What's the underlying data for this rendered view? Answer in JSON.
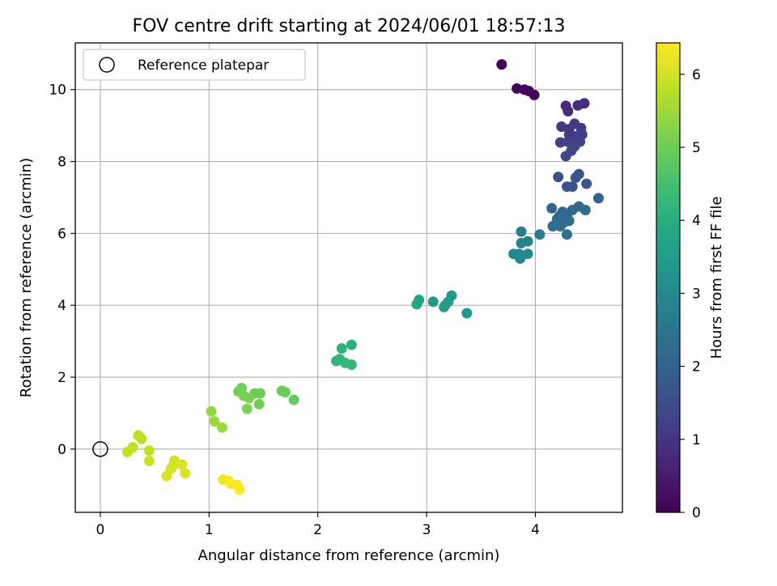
{
  "chart_data": {
    "type": "scatter",
    "title": "FOV centre drift starting at 2024/06/01 18:57:13",
    "xlabel": "Angular distance from reference (arcmin)",
    "ylabel": "Rotation from reference (arcmin)",
    "xlim": [
      -0.23,
      4.8
    ],
    "ylim": [
      -1.76,
      11.3
    ],
    "x_ticks": [
      0,
      1,
      2,
      3,
      4
    ],
    "y_ticks": [
      0,
      2,
      4,
      6,
      8,
      10
    ],
    "grid": true,
    "legend": {
      "placement": "upper-left",
      "entries": [
        "Reference platepar"
      ]
    },
    "reference_point": {
      "x": 0,
      "y": 0
    },
    "colorbar": {
      "label": "Hours from first FF file",
      "colormap": "viridis",
      "range": [
        0,
        6.43
      ],
      "ticks": [
        0,
        1,
        2,
        3,
        4,
        5,
        6
      ]
    },
    "points": [
      {
        "x": 3.69,
        "y": 10.7,
        "h": 0.0
      },
      {
        "x": 3.83,
        "y": 10.03,
        "h": 0.05
      },
      {
        "x": 3.9,
        "y": 10.0,
        "h": 0.1
      },
      {
        "x": 3.94,
        "y": 9.96,
        "h": 0.12
      },
      {
        "x": 3.99,
        "y": 9.85,
        "h": 0.15
      },
      {
        "x": 4.28,
        "y": 9.55,
        "h": 0.75
      },
      {
        "x": 4.3,
        "y": 9.4,
        "h": 0.8
      },
      {
        "x": 4.39,
        "y": 9.56,
        "h": 0.8
      },
      {
        "x": 4.45,
        "y": 9.62,
        "h": 0.85
      },
      {
        "x": 4.24,
        "y": 8.97,
        "h": 1.0
      },
      {
        "x": 4.31,
        "y": 8.9,
        "h": 1.0
      },
      {
        "x": 4.36,
        "y": 9.05,
        "h": 1.05
      },
      {
        "x": 4.42,
        "y": 8.93,
        "h": 1.1
      },
      {
        "x": 4.31,
        "y": 8.75,
        "h": 1.15
      },
      {
        "x": 4.37,
        "y": 8.7,
        "h": 1.15
      },
      {
        "x": 4.43,
        "y": 8.75,
        "h": 1.2
      },
      {
        "x": 4.23,
        "y": 8.53,
        "h": 1.2
      },
      {
        "x": 4.3,
        "y": 8.55,
        "h": 1.25
      },
      {
        "x": 4.36,
        "y": 8.42,
        "h": 1.25
      },
      {
        "x": 4.41,
        "y": 8.55,
        "h": 1.3
      },
      {
        "x": 4.33,
        "y": 8.3,
        "h": 1.3
      },
      {
        "x": 4.28,
        "y": 8.15,
        "h": 1.35
      },
      {
        "x": 4.21,
        "y": 7.57,
        "h": 1.6
      },
      {
        "x": 4.29,
        "y": 7.3,
        "h": 1.65
      },
      {
        "x": 4.34,
        "y": 7.3,
        "h": 1.65
      },
      {
        "x": 4.37,
        "y": 7.55,
        "h": 1.7
      },
      {
        "x": 4.4,
        "y": 7.65,
        "h": 1.7
      },
      {
        "x": 4.47,
        "y": 7.38,
        "h": 1.75
      },
      {
        "x": 4.58,
        "y": 6.98,
        "h": 2.0
      },
      {
        "x": 4.15,
        "y": 6.7,
        "h": 2.1
      },
      {
        "x": 4.22,
        "y": 6.48,
        "h": 2.1
      },
      {
        "x": 4.25,
        "y": 6.6,
        "h": 2.15
      },
      {
        "x": 4.29,
        "y": 6.5,
        "h": 2.15
      },
      {
        "x": 4.34,
        "y": 6.65,
        "h": 2.2
      },
      {
        "x": 4.4,
        "y": 6.75,
        "h": 2.2
      },
      {
        "x": 4.46,
        "y": 6.65,
        "h": 2.2
      },
      {
        "x": 4.2,
        "y": 6.4,
        "h": 2.25
      },
      {
        "x": 4.26,
        "y": 6.3,
        "h": 2.25
      },
      {
        "x": 4.31,
        "y": 6.35,
        "h": 2.3
      },
      {
        "x": 4.16,
        "y": 6.2,
        "h": 2.3
      },
      {
        "x": 4.23,
        "y": 6.2,
        "h": 2.35
      },
      {
        "x": 4.29,
        "y": 5.97,
        "h": 2.4
      },
      {
        "x": 4.04,
        "y": 5.97,
        "h": 2.65
      },
      {
        "x": 3.87,
        "y": 6.05,
        "h": 2.75
      },
      {
        "x": 3.93,
        "y": 5.78,
        "h": 2.8
      },
      {
        "x": 3.87,
        "y": 5.73,
        "h": 2.85
      },
      {
        "x": 3.8,
        "y": 5.43,
        "h": 3.0
      },
      {
        "x": 3.85,
        "y": 5.43,
        "h": 3.0
      },
      {
        "x": 3.93,
        "y": 5.43,
        "h": 3.05
      },
      {
        "x": 3.86,
        "y": 5.3,
        "h": 3.05
      },
      {
        "x": 3.37,
        "y": 3.78,
        "h": 3.4
      },
      {
        "x": 3.23,
        "y": 4.27,
        "h": 3.45
      },
      {
        "x": 3.06,
        "y": 4.1,
        "h": 3.5
      },
      {
        "x": 3.2,
        "y": 4.1,
        "h": 3.55
      },
      {
        "x": 3.17,
        "y": 4.0,
        "h": 3.55
      },
      {
        "x": 3.16,
        "y": 3.95,
        "h": 3.6
      },
      {
        "x": 2.93,
        "y": 4.15,
        "h": 3.7
      },
      {
        "x": 2.91,
        "y": 4.03,
        "h": 3.75
      },
      {
        "x": 2.31,
        "y": 2.9,
        "h": 4.05
      },
      {
        "x": 2.22,
        "y": 2.8,
        "h": 4.1
      },
      {
        "x": 2.17,
        "y": 2.45,
        "h": 4.2
      },
      {
        "x": 2.2,
        "y": 2.5,
        "h": 4.2
      },
      {
        "x": 2.25,
        "y": 2.4,
        "h": 4.25
      },
      {
        "x": 2.31,
        "y": 2.35,
        "h": 4.25
      },
      {
        "x": 1.78,
        "y": 1.37,
        "h": 4.9
      },
      {
        "x": 1.7,
        "y": 1.58,
        "h": 4.95
      },
      {
        "x": 1.67,
        "y": 1.62,
        "h": 4.95
      },
      {
        "x": 1.47,
        "y": 1.55,
        "h": 5.0
      },
      {
        "x": 1.42,
        "y": 1.55,
        "h": 5.0
      },
      {
        "x": 1.46,
        "y": 1.25,
        "h": 5.05
      },
      {
        "x": 1.3,
        "y": 1.7,
        "h": 5.05
      },
      {
        "x": 1.27,
        "y": 1.6,
        "h": 5.1
      },
      {
        "x": 1.32,
        "y": 1.48,
        "h": 5.1
      },
      {
        "x": 1.37,
        "y": 1.42,
        "h": 5.15
      },
      {
        "x": 1.35,
        "y": 1.12,
        "h": 5.15
      },
      {
        "x": 1.02,
        "y": 1.05,
        "h": 5.4
      },
      {
        "x": 1.05,
        "y": 0.77,
        "h": 5.45
      },
      {
        "x": 1.12,
        "y": 0.6,
        "h": 5.45
      },
      {
        "x": 0.35,
        "y": 0.38,
        "h": 5.8
      },
      {
        "x": 0.38,
        "y": 0.28,
        "h": 5.8
      },
      {
        "x": 0.3,
        "y": 0.05,
        "h": 5.85
      },
      {
        "x": 0.25,
        "y": -0.08,
        "h": 5.85
      },
      {
        "x": 0.45,
        "y": -0.04,
        "h": 5.85
      },
      {
        "x": 0.45,
        "y": -0.33,
        "h": 5.9
      },
      {
        "x": 0.68,
        "y": -0.32,
        "h": 6.0
      },
      {
        "x": 0.67,
        "y": -0.45,
        "h": 6.0
      },
      {
        "x": 0.65,
        "y": -0.55,
        "h": 6.05
      },
      {
        "x": 0.75,
        "y": -0.43,
        "h": 6.05
      },
      {
        "x": 0.78,
        "y": -0.67,
        "h": 6.1
      },
      {
        "x": 0.61,
        "y": -0.75,
        "h": 6.1
      },
      {
        "x": 1.13,
        "y": -0.85,
        "h": 6.3
      },
      {
        "x": 1.18,
        "y": -0.88,
        "h": 6.35
      },
      {
        "x": 1.26,
        "y": -1.0,
        "h": 6.38
      },
      {
        "x": 1.2,
        "y": -0.97,
        "h": 6.4
      },
      {
        "x": 1.28,
        "y": -1.13,
        "h": 6.43
      }
    ]
  }
}
